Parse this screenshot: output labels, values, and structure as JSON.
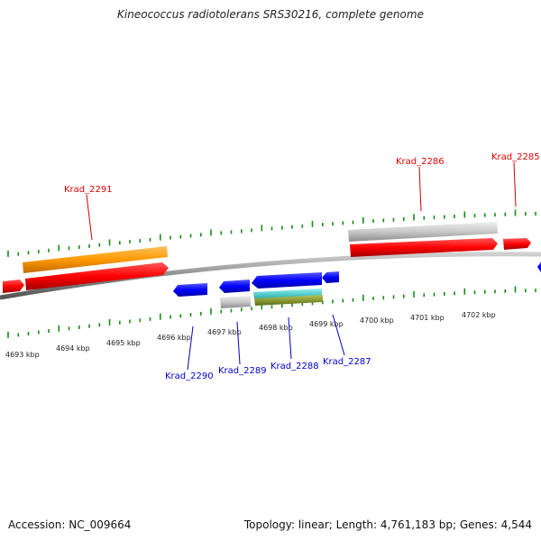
{
  "title": "Kineococcus radiotolerans SRS30216, complete genome",
  "footer": {
    "accession": "Accession: NC_009664",
    "summary": "Topology: linear; Length: 4,761,183 bp; Genes: 4,544"
  },
  "scale": {
    "labels": [
      "4693 kbp",
      "4694 kbp",
      "4695 kbp",
      "4696 kbp",
      "4697 kbp",
      "4698 kbp",
      "4699 kbp",
      "4700 kbp",
      "4701 kbp",
      "4702 kbp"
    ]
  },
  "genes": {
    "top": [
      {
        "name": "Krad_2291",
        "color": "#e00000"
      },
      {
        "name": "Krad_2286",
        "color": "#e00000"
      },
      {
        "name": "Krad_2285",
        "color": "#e00000"
      }
    ],
    "bottom": [
      {
        "name": "Krad_2290",
        "color": "#0000c8"
      },
      {
        "name": "Krad_2289",
        "color": "#0000c8"
      },
      {
        "name": "Krad_2288",
        "color": "#0000c8"
      },
      {
        "name": "Krad_2287",
        "color": "#0000c8"
      }
    ]
  },
  "colors": {
    "forward_cds": "#ff0000",
    "reverse_cds": "#0000ff",
    "orange_feature": "#ff9900",
    "grey_feature": "#c8c8c8",
    "cyan_feature": "#33cccc",
    "olive_feature": "#8a9a2a",
    "tick": "#1a8a1a",
    "backbone": "#8c8c8c"
  }
}
